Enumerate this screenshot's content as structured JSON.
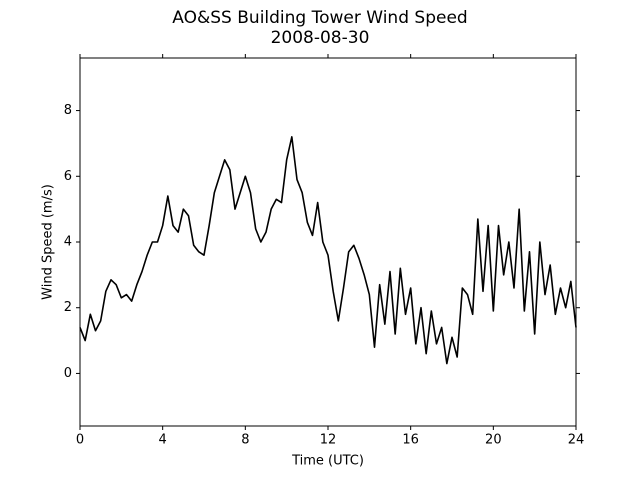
{
  "chart_data": {
    "type": "line",
    "title": "AO&SS Building Tower Wind Speed",
    "subtitle": "2008-08-30",
    "x_label": "Time (UTC)",
    "y_label": "Wind Speed (m/s)",
    "x": [
      0,
      0.25,
      0.5,
      0.75,
      1,
      1.25,
      1.5,
      1.75,
      2,
      2.25,
      2.5,
      2.75,
      3,
      3.25,
      3.5,
      3.75,
      4,
      4.25,
      4.5,
      4.75,
      5,
      5.25,
      5.5,
      5.75,
      6,
      6.25,
      6.5,
      6.75,
      7,
      7.25,
      7.5,
      7.75,
      8,
      8.25,
      8.5,
      8.75,
      9,
      9.25,
      9.5,
      9.75,
      10,
      10.25,
      10.5,
      10.75,
      11,
      11.25,
      11.5,
      11.75,
      12,
      12.25,
      12.5,
      12.75,
      13,
      13.25,
      13.5,
      13.75,
      14,
      14.25,
      14.5,
      14.75,
      15,
      15.25,
      15.5,
      15.75,
      16,
      16.25,
      16.5,
      16.75,
      17,
      17.25,
      17.5,
      17.75,
      18,
      18.25,
      18.5,
      18.75,
      19,
      19.25,
      19.5,
      19.75,
      20,
      20.25,
      20.5,
      20.75,
      21,
      21.25,
      21.5,
      21.75,
      22,
      22.25,
      22.5,
      22.75,
      23,
      23.25,
      23.5,
      23.75,
      24
    ],
    "series": [
      {
        "color": "#000000",
        "values": [
          1.4,
          1.0,
          1.8,
          1.3,
          1.6,
          2.5,
          2.85,
          2.7,
          2.3,
          2.4,
          2.2,
          2.7,
          3.1,
          3.6,
          4.0,
          4.0,
          4.5,
          5.4,
          4.5,
          4.3,
          5.0,
          4.8,
          3.9,
          3.7,
          3.6,
          4.5,
          5.5,
          6.0,
          6.5,
          6.2,
          5.0,
          5.5,
          6.0,
          5.5,
          4.4,
          4.0,
          4.3,
          5.0,
          5.3,
          5.2,
          6.5,
          7.2,
          5.9,
          5.5,
          4.6,
          4.2,
          5.2,
          4.0,
          3.6,
          2.5,
          1.6,
          2.6,
          3.7,
          3.9,
          3.5,
          3.0,
          2.4,
          0.8,
          2.7,
          1.5,
          3.1,
          1.2,
          3.2,
          1.8,
          2.6,
          0.9,
          2.0,
          0.6,
          1.9,
          0.9,
          1.4,
          0.3,
          1.1,
          0.5,
          2.6,
          2.4,
          1.8,
          4.7,
          2.5,
          4.5,
          1.9,
          4.5,
          3.0,
          4.0,
          2.6,
          5.0,
          1.9,
          3.7,
          1.2,
          4.0,
          2.4,
          3.3,
          1.8,
          2.6,
          2.0,
          2.8,
          1.4
        ]
      }
    ],
    "xlim": [
      0,
      24
    ],
    "xticks": [
      0,
      4,
      8,
      12,
      16,
      20,
      24
    ],
    "ylim": [
      -1.6,
      9.6
    ],
    "yticks": [
      0,
      2,
      4,
      6,
      8
    ],
    "grid": false
  }
}
